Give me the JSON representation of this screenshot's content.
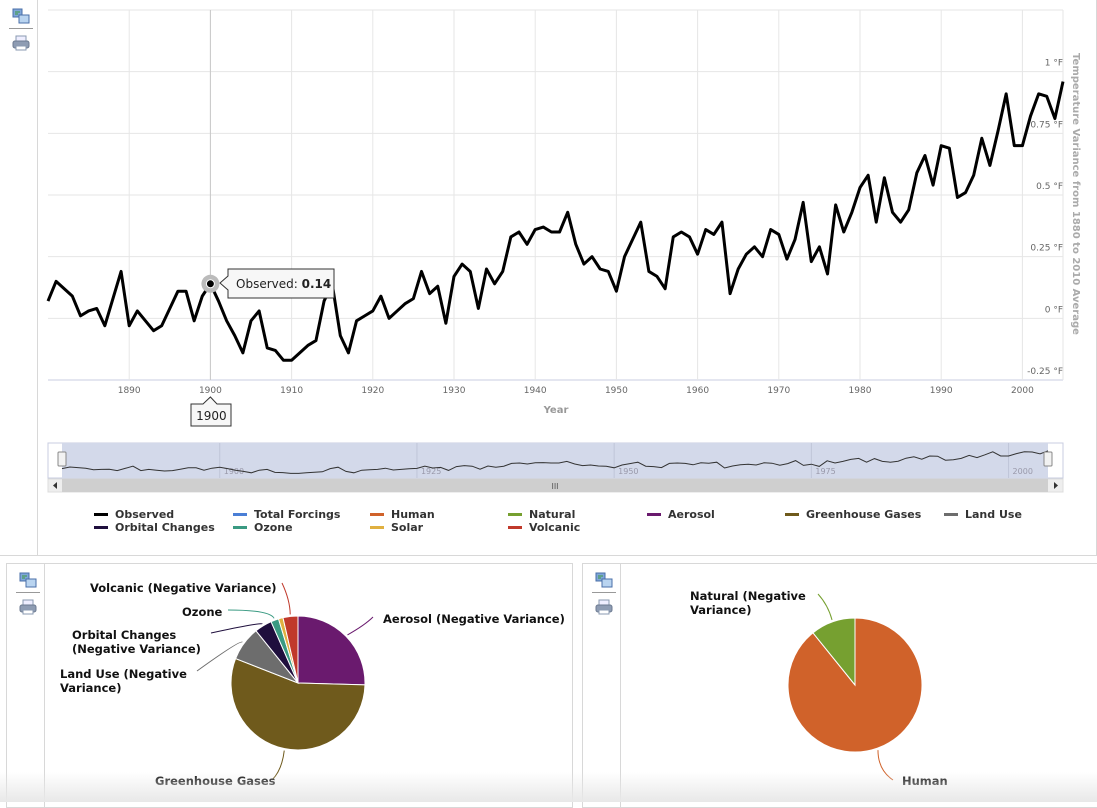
{
  "toolbar": {
    "export_icon": "export-data-icon",
    "print_icon": "printer-icon"
  },
  "line_chart": {
    "tooltip": {
      "series": "Observed",
      "label": "Observed: ",
      "value": "0.14",
      "x_label": "1900"
    },
    "navigator_labels": [
      "1900",
      "1925",
      "1950",
      "1975",
      "2000"
    ],
    "scrollbar_grip": "III"
  },
  "legend": [
    {
      "name": "Observed",
      "color": "#000000"
    },
    {
      "name": "Total Forcings",
      "color": "#4a7fd6"
    },
    {
      "name": "Human",
      "color": "#d0622a"
    },
    {
      "name": "Natural",
      "color": "#76a030"
    },
    {
      "name": "Aerosol",
      "color": "#6a1a6e"
    },
    {
      "name": "Greenhouse Gases",
      "color": "#6f5a1c"
    },
    {
      "name": "Land Use",
      "color": "#6d6d6d"
    },
    {
      "name": "Orbital Changes",
      "color": "#1f0f3d"
    },
    {
      "name": "Ozone",
      "color": "#3a9a82"
    },
    {
      "name": "Solar",
      "color": "#e0b040"
    },
    {
      "name": "Volcanic",
      "color": "#c0392b"
    }
  ],
  "chart_data": [
    {
      "type": "line",
      "xlabel": "Year",
      "ylabel": "Temperature Variance from 1880 to 2010 Average",
      "xlim": [
        1880,
        2005
      ],
      "ylim": [
        -0.25,
        1.25
      ],
      "x_ticks": [
        "1890",
        "1900",
        "1910",
        "1920",
        "1930",
        "1940",
        "1950",
        "1960",
        "1970",
        "1980",
        "1990",
        "2000"
      ],
      "y_ticks": [
        {
          "v": -0.25,
          "label": "-0.25 °F"
        },
        {
          "v": 0,
          "label": "0 °F"
        },
        {
          "v": 0.25,
          "label": "0.25 °F"
        },
        {
          "v": 0.5,
          "label": "0.5 °F"
        },
        {
          "v": 0.75,
          "label": "0.75 °F"
        },
        {
          "v": 1,
          "label": "1 °F"
        }
      ],
      "grid": true,
      "series": [
        {
          "name": "Observed",
          "color": "#000000",
          "x_start": 1880,
          "values": [
            0.07,
            0.15,
            0.12,
            0.09,
            0.01,
            0.03,
            0.04,
            -0.03,
            0.08,
            0.19,
            -0.03,
            0.03,
            -0.01,
            -0.05,
            -0.03,
            0.04,
            0.11,
            0.11,
            -0.01,
            0.09,
            0.14,
            0.07,
            -0.01,
            -0.07,
            -0.14,
            -0.01,
            0.03,
            -0.12,
            -0.13,
            -0.17,
            -0.17,
            -0.14,
            -0.11,
            -0.09,
            0.07,
            0.14,
            -0.07,
            -0.14,
            -0.01,
            0.01,
            0.03,
            0.09,
            0.0,
            0.03,
            0.06,
            0.08,
            0.19,
            0.1,
            0.13,
            -0.02,
            0.17,
            0.22,
            0.19,
            0.04,
            0.2,
            0.14,
            0.19,
            0.33,
            0.35,
            0.3,
            0.36,
            0.37,
            0.35,
            0.35,
            0.43,
            0.3,
            0.22,
            0.25,
            0.2,
            0.19,
            0.11,
            0.25,
            0.32,
            0.39,
            0.19,
            0.17,
            0.12,
            0.33,
            0.35,
            0.33,
            0.26,
            0.36,
            0.34,
            0.39,
            0.1,
            0.2,
            0.26,
            0.29,
            0.25,
            0.36,
            0.34,
            0.24,
            0.32,
            0.47,
            0.23,
            0.29,
            0.18,
            0.46,
            0.35,
            0.43,
            0.53,
            0.58,
            0.39,
            0.57,
            0.43,
            0.39,
            0.44,
            0.59,
            0.66,
            0.54,
            0.7,
            0.69,
            0.49,
            0.51,
            0.58,
            0.73,
            0.62,
            0.76,
            0.91,
            0.7,
            0.7,
            0.82,
            0.91,
            0.9,
            0.81,
            0.96
          ]
        }
      ]
    },
    {
      "type": "pie",
      "slices": [
        {
          "label": "Aerosol (Negative Variance)",
          "value": 25.5,
          "color": "#6a1a6e"
        },
        {
          "label": "Greenhouse Gases",
          "value": 55.6,
          "color": "#6f5a1c"
        },
        {
          "label": "Land Use (Negative Variance)",
          "value": 8.3,
          "color": "#6d6d6d"
        },
        {
          "label": "Orbital Changes (Negative Variance)",
          "value": 4.2,
          "color": "#1f0f3d"
        },
        {
          "label": "Ozone",
          "value": 1.9,
          "color": "#3a9a82"
        },
        {
          "label": "Solar",
          "value": 1.1,
          "color": "#e0b040"
        },
        {
          "label": "Volcanic (Negative Variance)",
          "value": 3.6,
          "color": "#c0392b"
        }
      ]
    },
    {
      "type": "pie",
      "slices": [
        {
          "label": "Human",
          "value": 89.2,
          "color": "#d0622a"
        },
        {
          "label": "Natural (Negative Variance)",
          "value": 10.8,
          "color": "#76a030"
        }
      ]
    }
  ]
}
